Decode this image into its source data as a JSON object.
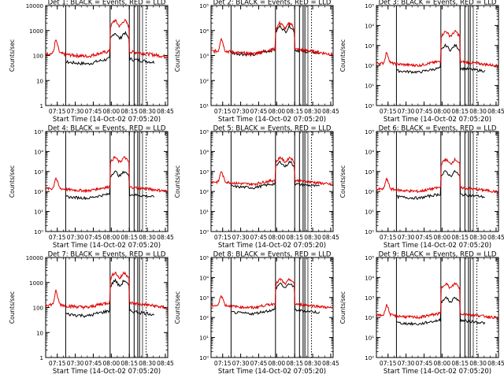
{
  "chart_data": [
    {
      "type": "line",
      "title": "Det 1: BLACK = Events, RED = LLD",
      "xlabel": "Start Time (14-Oct-02 07:05:20)",
      "ylabel": "Counts/sec",
      "y_scale": "log",
      "ylim": [
        1,
        10000
      ],
      "y_ticks": [
        "1",
        "10",
        "100",
        "1000",
        "10000"
      ],
      "x_ticks": [
        "07:15",
        "07:30",
        "07:45",
        "08:00",
        "08:15",
        "08:30",
        "08:45"
      ],
      "xlim": [
        "07:05:20",
        "08:47"
      ],
      "series": [
        {
          "color": "#000000",
          "base": 60,
          "peak": 800
        },
        {
          "color": "#e00000",
          "base": 120,
          "peak": 2500
        }
      ]
    },
    {
      "type": "line",
      "title": "Det 2: BLACK = Events, RED = LLD",
      "xlabel": "Start Time (14-Oct-02 07:05:20)",
      "ylabel": "Counts/sec",
      "y_scale": "log",
      "ylim": [
        10,
        100000
      ],
      "y_ticks": [
        "10¹",
        "10²",
        "10³",
        "10⁴",
        "10⁵"
      ],
      "x_ticks": [
        "07:15",
        "07:30",
        "07:45",
        "08:00",
        "08:15",
        "08:30",
        "08:45"
      ],
      "xlim": [
        "07:05:20",
        "08:47"
      ],
      "series": [
        {
          "color": "#000000",
          "base": 1400,
          "peak": 15000
        },
        {
          "color": "#e00000",
          "base": 1500,
          "peak": 20000
        }
      ]
    },
    {
      "type": "line",
      "title": "Det 3: BLACK = Events, RED = LLD",
      "xlabel": "Start Time (14-Oct-02 07:05:20)",
      "ylabel": "Counts/sec",
      "y_scale": "log",
      "ylim": [
        1,
        100000
      ],
      "y_ticks": [
        "10⁰",
        "10¹",
        "10²",
        "10³",
        "10⁴",
        "10⁵"
      ],
      "x_ticks": [
        "07:15",
        "07:30",
        "07:45",
        "08:00",
        "08:15",
        "08:30",
        "08:45"
      ],
      "xlim": [
        "07:05:20",
        "08:47"
      ],
      "series": [
        {
          "color": "#000000",
          "base": 60,
          "peak": 1000
        },
        {
          "color": "#e00000",
          "base": 130,
          "peak": 5000
        }
      ]
    },
    {
      "type": "line",
      "title": "Det 4: BLACK = Events, RED = LLD",
      "xlabel": "Start Time (14-Oct-02 07:05:20)",
      "ylabel": "Counts/sec",
      "y_scale": "log",
      "ylim": [
        1,
        100000
      ],
      "y_ticks": [
        "10⁰",
        "10¹",
        "10²",
        "10³",
        "10⁴",
        "10⁵"
      ],
      "x_ticks": [
        "07:15",
        "07:30",
        "07:45",
        "08:00",
        "08:15",
        "08:30",
        "08:45"
      ],
      "xlim": [
        "07:05:20",
        "08:47"
      ],
      "series": [
        {
          "color": "#000000",
          "base": 60,
          "peak": 1000
        },
        {
          "color": "#e00000",
          "base": 140,
          "peak": 5000
        }
      ]
    },
    {
      "type": "line",
      "title": "Det 5: BLACK = Events, RED = LLD",
      "xlabel": "Start Time (14-Oct-02 07:05:20)",
      "ylabel": "Counts/sec",
      "y_scale": "log",
      "ylim": [
        1,
        100000
      ],
      "y_ticks": [
        "10⁰",
        "10¹",
        "10²",
        "10³",
        "10⁴",
        "10⁵"
      ],
      "x_ticks": [
        "07:15",
        "07:30",
        "07:45",
        "08:00",
        "08:15",
        "08:30",
        "08:45"
      ],
      "xlim": [
        "07:05:20",
        "08:47"
      ],
      "series": [
        {
          "color": "#000000",
          "base": 200,
          "peak": 3000
        },
        {
          "color": "#e00000",
          "base": 300,
          "peak": 5000
        }
      ]
    },
    {
      "type": "line",
      "title": "Det 6: BLACK = Events, RED = LLD",
      "xlabel": "Start Time (14-Oct-02 07:05:20)",
      "ylabel": "Counts/sec",
      "y_scale": "log",
      "ylim": [
        1,
        100000
      ],
      "y_ticks": [
        "10⁰",
        "10¹",
        "10²",
        "10³",
        "10⁴",
        "10⁵"
      ],
      "x_ticks": [
        "07:15",
        "07:30",
        "07:45",
        "08:00",
        "08:15",
        "08:30",
        "08:45"
      ],
      "xlim": [
        "07:05:20",
        "08:47"
      ],
      "series": [
        {
          "color": "#000000",
          "base": 60,
          "peak": 1000
        },
        {
          "color": "#e00000",
          "base": 130,
          "peak": 4000
        }
      ]
    },
    {
      "type": "line",
      "title": "Det 7: BLACK = Events, RED = LLD",
      "xlabel": "Start Time (14-Oct-02 07:05:20)",
      "ylabel": "Counts/sec",
      "y_scale": "log",
      "ylim": [
        1,
        10000
      ],
      "y_ticks": [
        "1",
        "10",
        "100",
        "1000",
        "10000"
      ],
      "x_ticks": [
        "07:15",
        "07:30",
        "07:45",
        "08:00",
        "08:15",
        "08:30",
        "08:45"
      ],
      "xlim": [
        "07:05:20",
        "08:47"
      ],
      "series": [
        {
          "color": "#000000",
          "base": 60,
          "peak": 1200
        },
        {
          "color": "#e00000",
          "base": 130,
          "peak": 2500
        }
      ]
    },
    {
      "type": "line",
      "title": "Det 8: BLACK = Events, RED = LLD",
      "xlabel": "Start Time (14-Oct-02 07:05:20)",
      "ylabel": "Counts/sec",
      "y_scale": "log",
      "ylim": [
        1,
        100000
      ],
      "y_ticks": [
        "10⁰",
        "10¹",
        "10²",
        "10³",
        "10⁴",
        "10⁵"
      ],
      "x_ticks": [
        "07:15",
        "07:30",
        "07:45",
        "08:00",
        "08:15",
        "08:30",
        "08:45"
      ],
      "xlim": [
        "07:05:20",
        "08:47"
      ],
      "series": [
        {
          "color": "#000000",
          "base": 200,
          "peak": 5000
        },
        {
          "color": "#e00000",
          "base": 400,
          "peak": 8000
        }
      ]
    },
    {
      "type": "line",
      "title": "Det 9: BLACK = Events, RED = LLD",
      "xlabel": "Start Time (14-Oct-02 07:05:20)",
      "ylabel": "Counts/sec",
      "y_scale": "log",
      "ylim": [
        1,
        100000
      ],
      "y_ticks": [
        "10⁰",
        "10¹",
        "10²",
        "10³",
        "10⁴",
        "10⁵"
      ],
      "x_ticks": [
        "07:15",
        "07:30",
        "07:45",
        "08:00",
        "08:15",
        "08:30",
        "08:45"
      ],
      "xlim": [
        "07:05:20",
        "08:47"
      ],
      "series": [
        {
          "color": "#000000",
          "base": 60,
          "peak": 1000
        },
        {
          "color": "#e00000",
          "base": 130,
          "peak": 5000
        }
      ]
    }
  ]
}
